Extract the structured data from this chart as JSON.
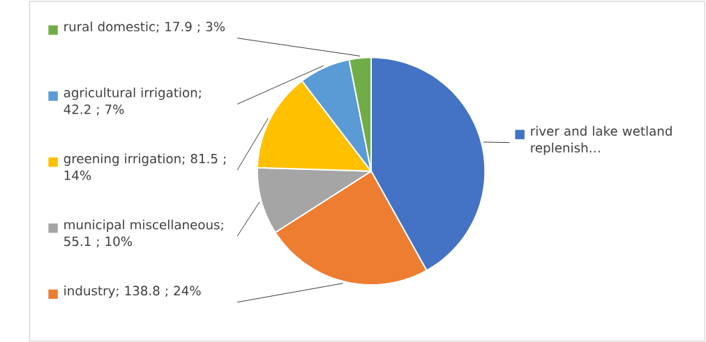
{
  "chart_data": {
    "type": "pie",
    "categories": [
      "river and lake wetland replenish…",
      "industry",
      "municipal miscellaneous",
      "greening irrigation",
      "agricultural irrigation",
      "rural domestic"
    ],
    "values": [
      242,
      138.8,
      55.1,
      81.5,
      42.2,
      17.9
    ],
    "value_labels": [
      null,
      "; 138.8 ; 24%",
      "; 55.1 ; 10%",
      "; 81.5 ; 14%",
      "; 42.2 ; 7%",
      "; 17.9 ; 3%"
    ],
    "colors": [
      "#4472c4",
      "#ed7d31",
      "#a5a5a5",
      "#ffc000",
      "#5b9bd5",
      "#70ad47"
    ],
    "legend": "left"
  }
}
